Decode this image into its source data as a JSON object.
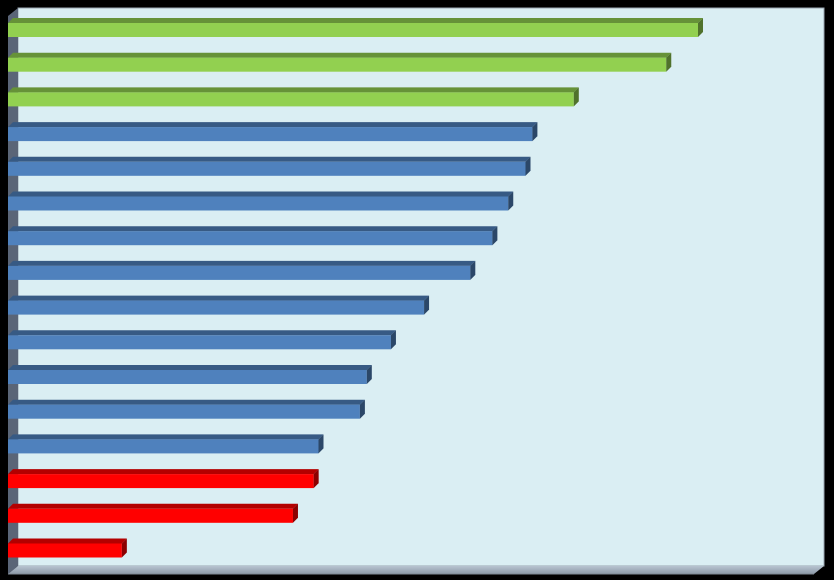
{
  "chart_data": {
    "type": "bar",
    "orientation": "horizontal",
    "title": "",
    "xlabel": "",
    "ylabel": "",
    "xlim": [
      0,
      100
    ],
    "grid": false,
    "legend": "none",
    "categories": [
      "",
      "",
      "",
      "",
      "",
      "",
      "",
      "",
      "",
      "",
      "",
      "",
      "",
      "",
      "",
      ""
    ],
    "values": [
      100,
      95.4,
      82,
      76,
      75,
      72.5,
      70.2,
      67,
      60.3,
      55.5,
      52,
      51,
      45,
      44.3,
      41.3,
      16.5
    ],
    "colors": [
      "#92D050",
      "#92D050",
      "#92D050",
      "#4F81BD",
      "#4F81BD",
      "#4F81BD",
      "#4F81BD",
      "#4F81BD",
      "#4F81BD",
      "#4F81BD",
      "#4F81BD",
      "#4F81BD",
      "#4F81BD",
      "#FF0000",
      "#FF0000",
      "#FF0000"
    ],
    "plot_background": "#DAEEF3",
    "wall_color": "#5A6577"
  }
}
